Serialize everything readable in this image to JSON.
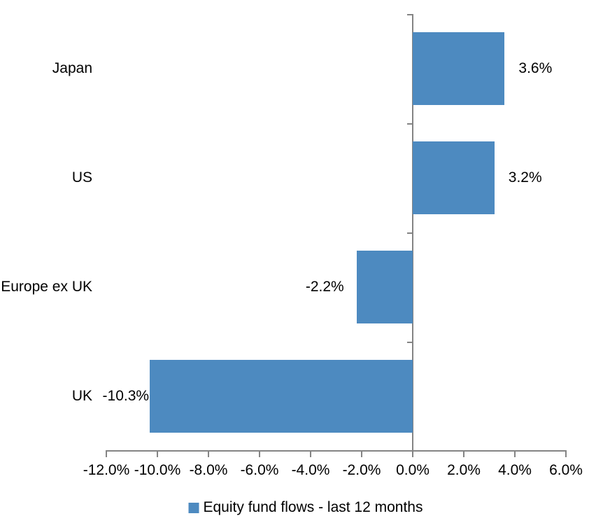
{
  "chart_data": {
    "type": "bar",
    "orientation": "horizontal",
    "categories": [
      "Japan",
      "US",
      "Europe ex UK",
      "UK"
    ],
    "series": [
      {
        "name": "Equity fund flows - last 12 months",
        "values": [
          3.6,
          3.2,
          -2.2,
          -10.3
        ],
        "labels": [
          "3.6%",
          "3.2%",
          "-2.2%",
          "-10.3%"
        ],
        "color": "#4D8AC0"
      }
    ],
    "xlim": [
      -12,
      6
    ],
    "xticks": [
      -12,
      -10,
      -8,
      -6,
      -4,
      -2,
      0,
      2,
      4,
      6
    ],
    "xtick_labels": [
      "-12.0%",
      "-10.0%",
      "-8.0%",
      "-6.0%",
      "-4.0%",
      "-2.0%",
      "0.0%",
      "2.0%",
      "4.0%",
      "6.0%"
    ],
    "grid": false,
    "legend_position": "bottom",
    "axis_color": "#848484",
    "text_color": "#000000",
    "background": "#FFFFFF"
  }
}
